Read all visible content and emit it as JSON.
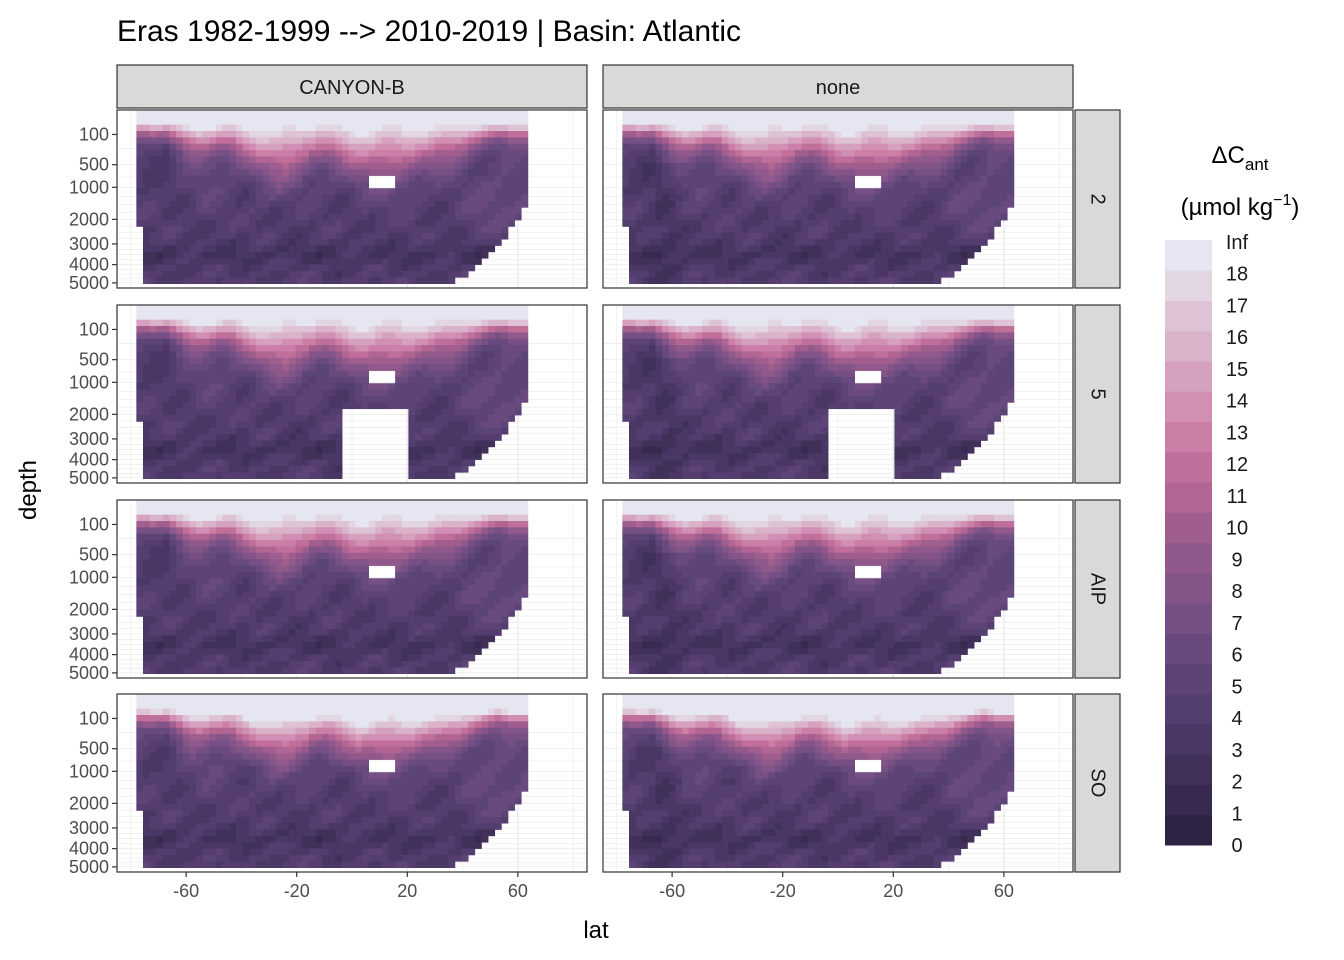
{
  "chart_data": {
    "type": "filled-contour",
    "title": "Eras 1982-1999 --> 2010-2019 | Basin: Atlantic",
    "xlabel": "lat",
    "ylabel": "depth",
    "x_ticks": [
      -60,
      -20,
      20,
      60
    ],
    "xlim": [
      -85,
      85
    ],
    "y_ticks": [
      100,
      500,
      1000,
      2000,
      3000,
      4000,
      5000
    ],
    "ylim": [
      5300,
      0
    ],
    "y_scale": "sqrt, reversed",
    "grid": true,
    "facet_columns": [
      "CANYON-B",
      "none"
    ],
    "facet_rows": [
      "2",
      "5",
      "AIP",
      "SO"
    ],
    "legend": {
      "title_main": "ΔC",
      "title_sub": "ant",
      "title_units_pre": "(µmol kg",
      "title_units_sup": "−1",
      "title_units_post": ")",
      "placement": "right",
      "breaks": [
        "0",
        "1",
        "2",
        "3",
        "4",
        "5",
        "6",
        "7",
        "8",
        "9",
        "10",
        "11",
        "12",
        "13",
        "14",
        "15",
        "16",
        "17",
        "18",
        "Inf"
      ],
      "colors": [
        "#2e2343",
        "#372a4e",
        "#40305a",
        "#4a3765",
        "#533e6f",
        "#5d4477",
        "#694a7e",
        "#764f84",
        "#835488",
        "#91598b",
        "#a05e8e",
        "#b06593",
        "#c06e9a",
        "#cb7fa7",
        "#d18fb3",
        "#d6a0bf",
        "#dab2ca",
        "#ddc3d5",
        "#e1d6e2",
        "#e6e6f2"
      ]
    },
    "panel_variants": {
      "2": {
        "fresh_offset": 0,
        "cutout": false,
        "holes": false
      },
      "5": {
        "fresh_offset": 0,
        "cutout": true,
        "holes": false
      },
      "AIP": {
        "fresh_offset": 0,
        "cutout": false,
        "holes": false
      },
      "SO": {
        "fresh_offset": 0.2,
        "cutout": false,
        "holes": false
      }
    }
  }
}
